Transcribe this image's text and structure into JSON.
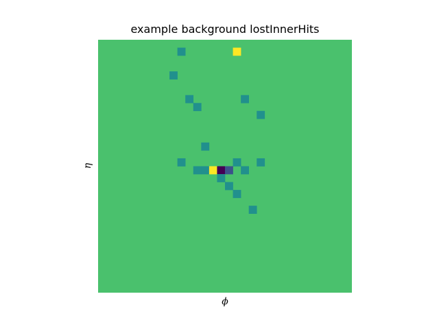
{
  "chart_data": {
    "type": "heatmap",
    "title": "example background lostInnerHits",
    "xlabel": "ϕ",
    "ylabel": "η",
    "grid": false,
    "axes_visible": false,
    "grid_size": [
      32,
      32
    ],
    "background_level": 2,
    "level_colors": {
      "0": "#440154",
      "1": "#3b528b",
      "2": "#4ac16d",
      "3": "#21908d",
      "4": "#fde725"
    },
    "cells": [
      {
        "row": 1,
        "col": 10,
        "level": 3
      },
      {
        "row": 1,
        "col": 17,
        "level": 4
      },
      {
        "row": 4,
        "col": 9,
        "level": 3
      },
      {
        "row": 7,
        "col": 11,
        "level": 3
      },
      {
        "row": 7,
        "col": 18,
        "level": 3
      },
      {
        "row": 8,
        "col": 12,
        "level": 3
      },
      {
        "row": 9,
        "col": 20,
        "level": 3
      },
      {
        "row": 13,
        "col": 13,
        "level": 3
      },
      {
        "row": 15,
        "col": 10,
        "level": 3
      },
      {
        "row": 15,
        "col": 17,
        "level": 3
      },
      {
        "row": 15,
        "col": 20,
        "level": 3
      },
      {
        "row": 16,
        "col": 12,
        "level": 3
      },
      {
        "row": 16,
        "col": 13,
        "level": 3
      },
      {
        "row": 16,
        "col": 14,
        "level": 4
      },
      {
        "row": 16,
        "col": 15,
        "level": 0
      },
      {
        "row": 16,
        "col": 16,
        "level": 1
      },
      {
        "row": 16,
        "col": 18,
        "level": 3
      },
      {
        "row": 17,
        "col": 15,
        "level": 3
      },
      {
        "row": 18,
        "col": 16,
        "level": 3
      },
      {
        "row": 19,
        "col": 17,
        "level": 3
      },
      {
        "row": 21,
        "col": 19,
        "level": 3
      }
    ]
  }
}
